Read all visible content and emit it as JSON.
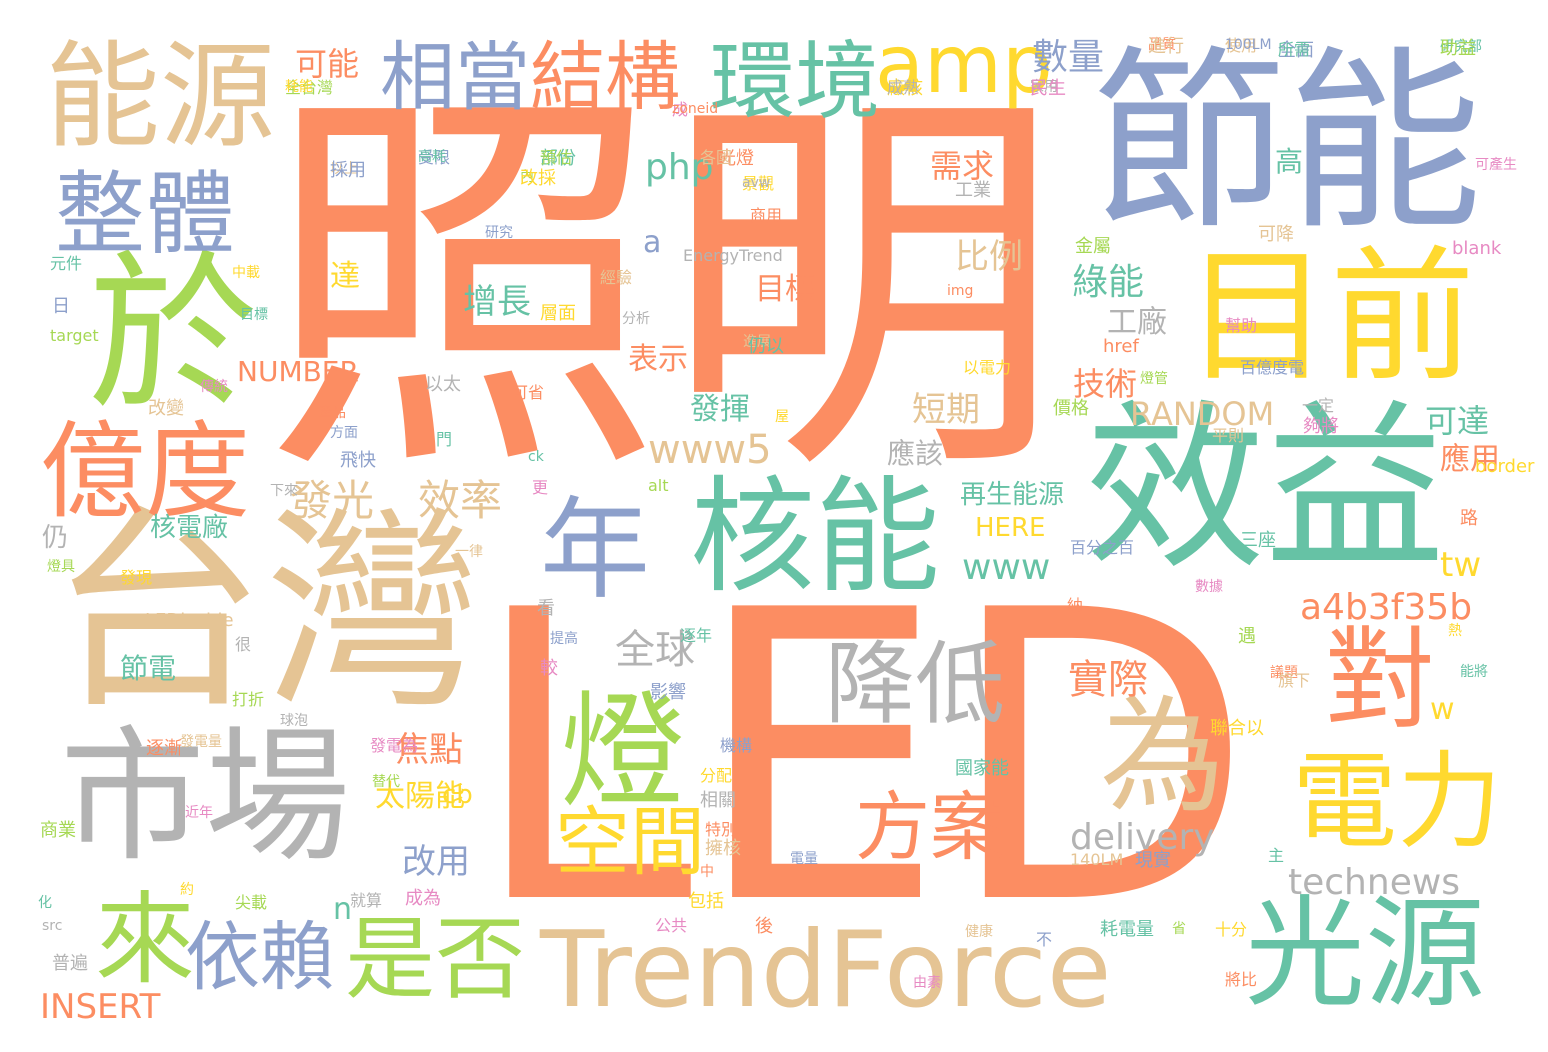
{
  "palette": {
    "orange": "#fc8d62",
    "tan": "#e5c494",
    "blue": "#8da0cb",
    "green": "#66c2a5",
    "lime": "#a6d854",
    "yellow": "#ffd92f",
    "grey": "#b3b3b3",
    "pink": "#e78ac3"
  },
  "words": {
    "zhaoming": "照明",
    "led": "LED",
    "taiwan": "台灣",
    "jieneng": "節能",
    "xiaoyi": "效益",
    "nengyuan": "能源",
    "shichang": "市場",
    "hengneng": "核能",
    "mubiao_qian": "目前",
    "yu": "於",
    "yidu": "億度",
    "trendforce": "TrendForce",
    "deng": "燈",
    "guangyuan": "光源",
    "nian": "年",
    "wei": "為",
    "dui": "對",
    "dianli": "電力",
    "zhengti": "整體",
    "huanjing": "環境",
    "xiangdang": "相當",
    "jiegou": "結構",
    "amp": "amp",
    "jiangdi": "降低",
    "fangan": "方案",
    "shifou": "是否",
    "yilai": "依賴",
    "lai": "來",
    "kongjian": "空間",
    "fuguang": "發光",
    "xiaolu": "效率",
    "quanqiu": "全球",
    "www5": "www5",
    "www": "www",
    "php": "php",
    "a4b3f35b": "a4b3f35b",
    "technews": "technews",
    "delivery": "delivery",
    "insert": "INSERT",
    "random": "RANDOM",
    "number": "NUMBER",
    "here": "HERE",
    "shuliang": "數量",
    "keneng": "可能",
    "xuqiu": "需求",
    "bili": "比例",
    "luneng": "綠能",
    "zengzhang": "增長",
    "mubiao": "目標",
    "jishu": "技術",
    "duanqi": "短期",
    "keda": "可達",
    "yingyong": "應用",
    "fahui": "發揮",
    "biaoshi": "表示",
    "gongchang": "工廠",
    "shiji": "實際",
    "jiaodian": "焦點",
    "taiyangneng": "太陽能",
    "gaiyong": "改用",
    "hedianchang": "核電廠",
    "jiedian": "節電",
    "zaisheng": "再生能源",
    "yinggai": "應該",
    "da": "達",
    "a": "a",
    "tw": "tw",
    "cb": "cb",
    "n": "n",
    "w": "w",
    "gao": "高",
    "reng": "仍",
    "small": [
      "品質",
      "使用",
      "全面",
      "研究部",
      "全台灣",
      "廠核",
      "家用",
      "成",
      "螢光燈",
      "以上",
      "受限",
      "部份",
      "內",
      "景觀",
      "工業",
      "可產生",
      "商用",
      "可降",
      "研究",
      "元件",
      "金屬",
      "中載",
      "EnergyTrend",
      "blank",
      "img",
      "經驗",
      "日",
      "目標",
      "target",
      "層面",
      "分析",
      "幫助",
      "href",
      "進展",
      "百億度電",
      "仍以",
      "燈管",
      "以電力",
      "以太",
      "傳統",
      "可省",
      "改變",
      "方面",
      "門",
      "價格",
      "屋",
      "一定",
      "夠將",
      "產品",
      "平則",
      "飛快",
      "ck",
      "alt",
      "border",
      "下來",
      "更",
      "路",
      "一律",
      "百分之百",
      "三座",
      "燈具",
      "發現",
      "看",
      "數據",
      "納",
      "LEDinside",
      "提高",
      "逐年",
      "遇",
      "熱",
      "很",
      "較",
      "議題",
      "旗下",
      "影響",
      "能將",
      "打折",
      "聯合以",
      "球泡",
      "發電為",
      "逐漸",
      "發電量",
      "機構",
      "國家能",
      "替代",
      "分配",
      "相關",
      "近年",
      "特別",
      "擁核",
      "電量",
      "主",
      "商業",
      "約",
      "就算",
      "成為",
      "中",
      "140LM",
      "現實",
      "化",
      "尖載",
      "包括",
      "src",
      "公共",
      "後",
      "健康",
      "不",
      "耗電量",
      "省",
      "十分",
      "普遍",
      "由素",
      "將比",
      "進行",
      "100LM",
      "所需",
      "助益",
      "耗能",
      "成熟",
      "民生",
      "zoneid",
      "各國",
      "採用",
      "高耗",
      "預估",
      "改採",
      "avw"
    ]
  }
}
